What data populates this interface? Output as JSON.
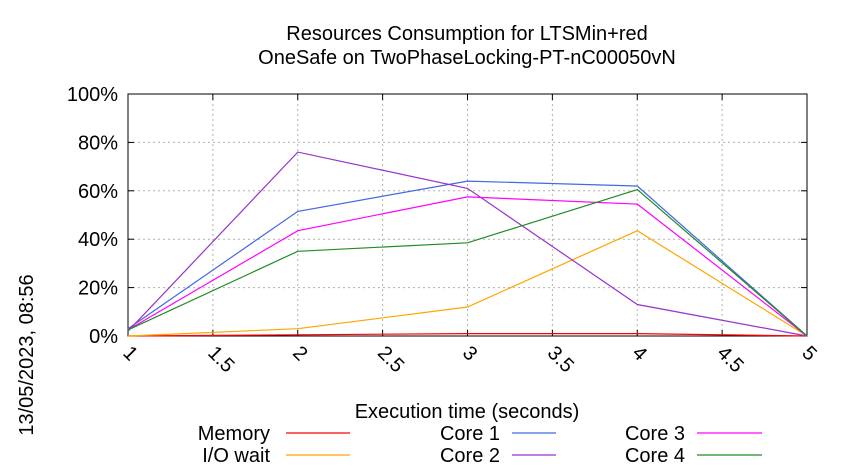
{
  "chart_data": {
    "type": "line",
    "title_line1": "Resources Consumption for LTSMin+red",
    "title_line2": "OneSafe on TwoPhaseLocking-PT-nC00050vN",
    "xlabel": "Execution time (seconds)",
    "ylabel": "",
    "timestamp": "13/05/2023, 08:56",
    "xlim": [
      1,
      5
    ],
    "ylim": [
      0,
      100
    ],
    "x_ticks": [
      "1",
      "1.5",
      "2",
      "2.5",
      "3",
      "3.5",
      "4",
      "4.5",
      "5"
    ],
    "y_ticks": [
      "0%",
      "20%",
      "40%",
      "60%",
      "80%",
      "100%"
    ],
    "grid": true,
    "legend_position": "bottom",
    "x": [
      1,
      2,
      3,
      4,
      5
    ],
    "series": [
      {
        "name": "Memory",
        "color": "#ff0000",
        "values": [
          0,
          0.5,
          1,
          1,
          0
        ]
      },
      {
        "name": "I/O wait",
        "color": "#ffa500",
        "values": [
          0,
          3,
          12,
          43.5,
          0
        ]
      },
      {
        "name": "Core 1",
        "color": "#4169e1",
        "values": [
          3,
          51.5,
          64,
          62,
          0
        ]
      },
      {
        "name": "Core 2",
        "color": "#9932cc",
        "values": [
          2,
          76,
          61,
          13,
          0
        ]
      },
      {
        "name": "Core 3",
        "color": "#ff00ff",
        "values": [
          2.5,
          43.5,
          57.5,
          54.5,
          0
        ]
      },
      {
        "name": "Core 4",
        "color": "#228b22",
        "values": [
          2.5,
          35,
          38.5,
          60.5,
          0
        ]
      }
    ]
  }
}
